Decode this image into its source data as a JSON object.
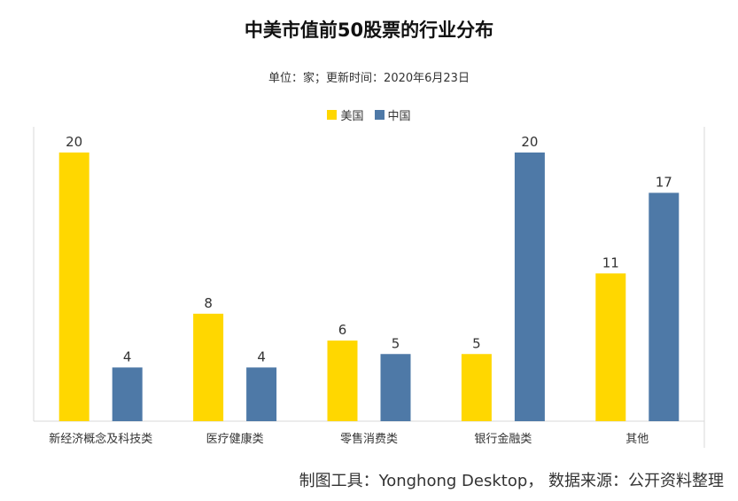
{
  "chart_data": {
    "type": "bar",
    "title": "中美市值前50股票的行业分布",
    "subtitle": "单位：家；更新时间：2020年6月23日",
    "categories": [
      "新经济概念及科技类",
      "医疗健康类",
      "零售消费类",
      "银行金融类",
      "其他"
    ],
    "series": [
      {
        "name": "美国",
        "color": "#FFD700",
        "values": [
          20,
          8,
          6,
          5,
          11
        ]
      },
      {
        "name": "中国",
        "color": "#4E79A7",
        "values": [
          4,
          4,
          5,
          20,
          17
        ]
      }
    ],
    "ylim": [
      0,
      20
    ],
    "grid": false,
    "legend_position": "top"
  },
  "footer": {
    "source": "制图工具：Yonghong Desktop， 数据来源：公开资料整理"
  }
}
